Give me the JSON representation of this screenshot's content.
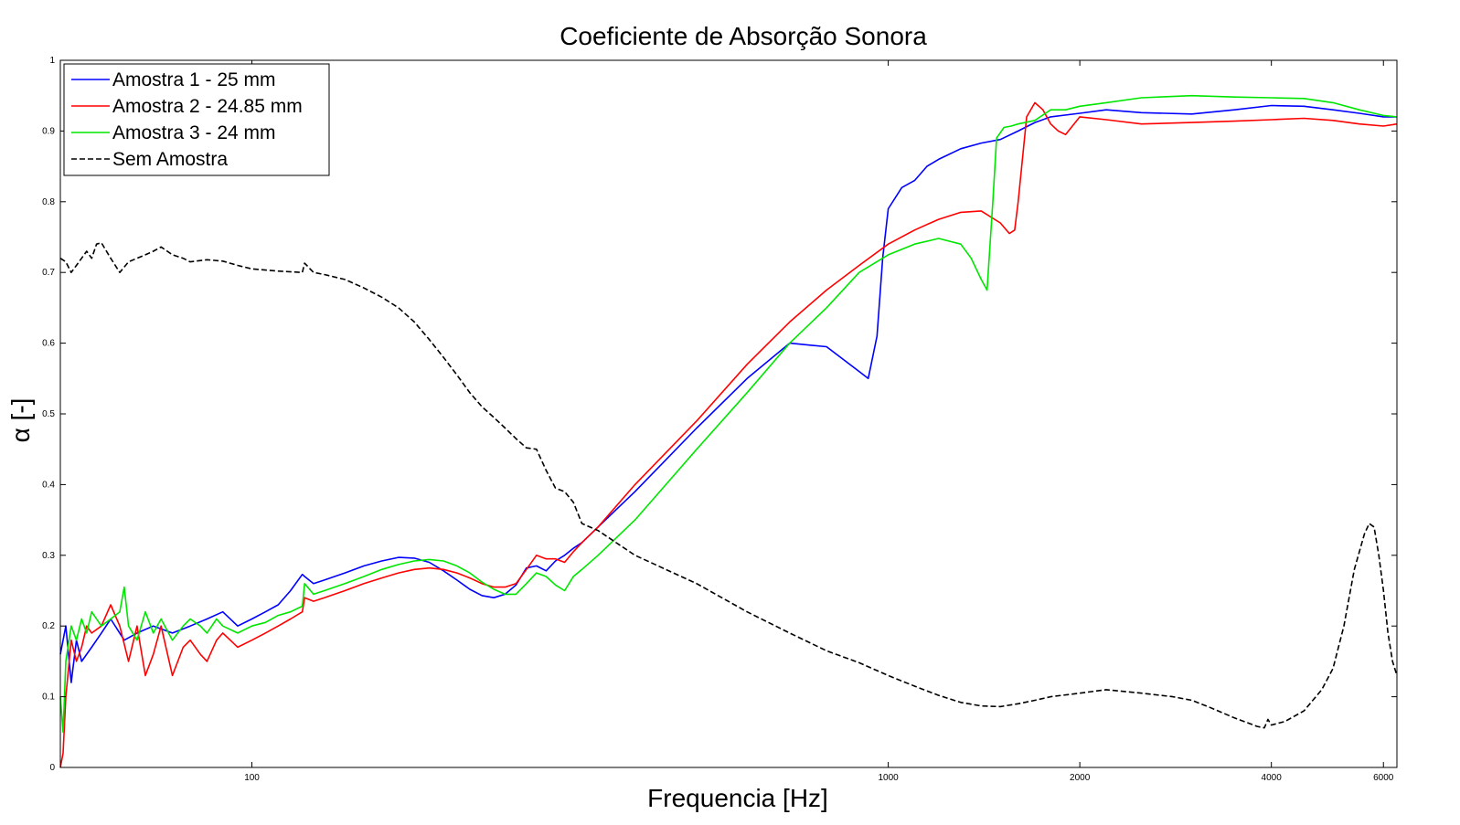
{
  "chart_data": {
    "type": "line",
    "title": "Coeficiente de Absorção Sonora",
    "xlabel": "Frequencia [Hz]",
    "ylabel": "α [-]",
    "xscale": "log",
    "xlim": [
      50,
      6300
    ],
    "ylim": [
      0,
      1
    ],
    "x_ticks": [
      100,
      1000,
      2000,
      4000,
      6000
    ],
    "y_ticks": [
      0,
      0.1,
      0.2,
      0.3,
      0.4,
      0.5,
      0.6,
      0.7,
      0.8,
      0.9,
      1
    ],
    "grid": false,
    "legend": "top-left",
    "series": [
      {
        "name": "Amostra 1 - 25 mm",
        "color": "#0000ff",
        "dash": "solid",
        "x": [
          50,
          51,
          52,
          53,
          54,
          56,
          58,
          60,
          63,
          66,
          70,
          75,
          80,
          85,
          90,
          95,
          100,
          105,
          110,
          115,
          120,
          121,
          125,
          130,
          140,
          150,
          160,
          170,
          180,
          190,
          200,
          210,
          220,
          230,
          240,
          250,
          260,
          270,
          280,
          290,
          300,
          310,
          320,
          330,
          350,
          400,
          500,
          600,
          700,
          800,
          900,
          930,
          960,
          980,
          1000,
          1050,
          1100,
          1150,
          1200,
          1300,
          1400,
          1500,
          1600,
          1700,
          1800,
          2000,
          2200,
          2500,
          3000,
          3500,
          4000,
          4500,
          5000,
          5500,
          6000,
          6300
        ],
        "y": [
          0.16,
          0.2,
          0.12,
          0.18,
          0.15,
          0.17,
          0.19,
          0.21,
          0.18,
          0.19,
          0.2,
          0.19,
          0.2,
          0.21,
          0.22,
          0.2,
          0.21,
          0.22,
          0.23,
          0.25,
          0.273,
          0.27,
          0.26,
          0.265,
          0.275,
          0.285,
          0.292,
          0.297,
          0.296,
          0.29,
          0.278,
          0.265,
          0.252,
          0.243,
          0.24,
          0.245,
          0.258,
          0.282,
          0.285,
          0.278,
          0.292,
          0.3,
          0.31,
          0.318,
          0.34,
          0.39,
          0.48,
          0.55,
          0.6,
          0.595,
          0.56,
          0.55,
          0.61,
          0.72,
          0.79,
          0.82,
          0.83,
          0.85,
          0.86,
          0.875,
          0.883,
          0.888,
          0.9,
          0.912,
          0.92,
          0.925,
          0.93,
          0.926,
          0.924,
          0.93,
          0.936,
          0.935,
          0.93,
          0.925,
          0.92,
          0.92
        ]
      },
      {
        "name": "Amostra 2 - 24.85 mm",
        "color": "#ff0000",
        "dash": "solid",
        "x": [
          50,
          50.5,
          51,
          52,
          53,
          54,
          55,
          56,
          58,
          60,
          62,
          64,
          66,
          68,
          70,
          72,
          75,
          78,
          80,
          83,
          85,
          88,
          90,
          95,
          100,
          105,
          110,
          115,
          120,
          121,
          125,
          130,
          140,
          150,
          160,
          170,
          180,
          190,
          200,
          210,
          220,
          230,
          240,
          250,
          260,
          270,
          280,
          290,
          300,
          310,
          320,
          330,
          350,
          400,
          500,
          600,
          700,
          800,
          900,
          1000,
          1100,
          1200,
          1300,
          1400,
          1500,
          1550,
          1580,
          1600,
          1650,
          1700,
          1750,
          1800,
          1850,
          1900,
          2000,
          2200,
          2500,
          3000,
          3500,
          4000,
          4500,
          5000,
          5500,
          6000,
          6300
        ],
        "y": [
          0.0,
          0.02,
          0.1,
          0.18,
          0.15,
          0.17,
          0.2,
          0.19,
          0.2,
          0.23,
          0.2,
          0.15,
          0.2,
          0.13,
          0.16,
          0.2,
          0.13,
          0.17,
          0.18,
          0.16,
          0.15,
          0.18,
          0.19,
          0.17,
          0.18,
          0.19,
          0.2,
          0.21,
          0.22,
          0.24,
          0.235,
          0.24,
          0.25,
          0.26,
          0.268,
          0.275,
          0.28,
          0.282,
          0.28,
          0.275,
          0.268,
          0.26,
          0.255,
          0.255,
          0.26,
          0.28,
          0.3,
          0.295,
          0.295,
          0.29,
          0.305,
          0.318,
          0.34,
          0.4,
          0.49,
          0.57,
          0.63,
          0.675,
          0.71,
          0.74,
          0.76,
          0.775,
          0.785,
          0.787,
          0.77,
          0.755,
          0.76,
          0.8,
          0.92,
          0.94,
          0.93,
          0.91,
          0.9,
          0.895,
          0.92,
          0.916,
          0.91,
          0.912,
          0.914,
          0.916,
          0.918,
          0.915,
          0.91,
          0.907,
          0.91
        ]
      },
      {
        "name": "Amostra 3 - 24 mm",
        "color": "#00e600",
        "dash": "solid",
        "x": [
          50,
          50.5,
          51,
          52,
          53,
          54,
          55,
          56,
          58,
          60,
          62,
          63,
          64,
          66,
          68,
          70,
          72,
          75,
          78,
          80,
          83,
          85,
          88,
          90,
          95,
          100,
          105,
          110,
          115,
          120,
          121,
          125,
          130,
          140,
          150,
          160,
          170,
          180,
          190,
          200,
          210,
          220,
          230,
          240,
          250,
          260,
          270,
          280,
          290,
          300,
          310,
          320,
          330,
          350,
          400,
          500,
          600,
          700,
          800,
          900,
          1000,
          1100,
          1200,
          1300,
          1350,
          1400,
          1430,
          1460,
          1480,
          1520,
          1560,
          1600,
          1700,
          1800,
          1900,
          2000,
          2200,
          2500,
          3000,
          3500,
          4000,
          4500,
          5000,
          5500,
          6000,
          6300
        ],
        "y": [
          0.1,
          0.05,
          0.15,
          0.2,
          0.18,
          0.21,
          0.19,
          0.22,
          0.2,
          0.21,
          0.22,
          0.255,
          0.2,
          0.18,
          0.22,
          0.19,
          0.21,
          0.18,
          0.2,
          0.21,
          0.2,
          0.19,
          0.21,
          0.2,
          0.19,
          0.2,
          0.205,
          0.215,
          0.22,
          0.228,
          0.26,
          0.245,
          0.25,
          0.26,
          0.27,
          0.28,
          0.287,
          0.292,
          0.294,
          0.292,
          0.285,
          0.275,
          0.262,
          0.252,
          0.245,
          0.245,
          0.26,
          0.275,
          0.27,
          0.258,
          0.25,
          0.27,
          0.28,
          0.3,
          0.35,
          0.45,
          0.53,
          0.6,
          0.65,
          0.7,
          0.725,
          0.74,
          0.748,
          0.74,
          0.72,
          0.69,
          0.675,
          0.8,
          0.89,
          0.905,
          0.907,
          0.91,
          0.915,
          0.93,
          0.93,
          0.935,
          0.94,
          0.947,
          0.95,
          0.948,
          0.947,
          0.946,
          0.94,
          0.93,
          0.922,
          0.92
        ]
      },
      {
        "name": "Sem Amostra",
        "color": "#000000",
        "dash": "dashed",
        "x": [
          50,
          51,
          52,
          53,
          55,
          56,
          57,
          58,
          60,
          62,
          64,
          66,
          68,
          70,
          72,
          75,
          78,
          80,
          85,
          90,
          95,
          100,
          110,
          120,
          121,
          125,
          130,
          140,
          150,
          160,
          170,
          180,
          190,
          200,
          210,
          220,
          230,
          240,
          250,
          260,
          270,
          280,
          290,
          300,
          310,
          320,
          330,
          350,
          400,
          500,
          600,
          700,
          800,
          900,
          1000,
          1100,
          1200,
          1300,
          1400,
          1500,
          1600,
          1700,
          1800,
          2000,
          2200,
          2500,
          2800,
          3000,
          3200,
          3500,
          3800,
          3900,
          3950,
          4000,
          4200,
          4500,
          4800,
          5000,
          5200,
          5400,
          5600,
          5700,
          5800,
          5900,
          6000,
          6100,
          6200,
          6300
        ],
        "y": [
          0.72,
          0.715,
          0.7,
          0.71,
          0.73,
          0.72,
          0.74,
          0.742,
          0.72,
          0.7,
          0.715,
          0.72,
          0.725,
          0.73,
          0.736,
          0.725,
          0.72,
          0.715,
          0.718,
          0.716,
          0.71,
          0.705,
          0.702,
          0.7,
          0.713,
          0.7,
          0.697,
          0.69,
          0.678,
          0.665,
          0.65,
          0.63,
          0.605,
          0.58,
          0.555,
          0.53,
          0.51,
          0.495,
          0.48,
          0.465,
          0.452,
          0.45,
          0.42,
          0.395,
          0.39,
          0.375,
          0.345,
          0.335,
          0.3,
          0.26,
          0.22,
          0.19,
          0.165,
          0.148,
          0.13,
          0.115,
          0.102,
          0.092,
          0.087,
          0.086,
          0.09,
          0.095,
          0.1,
          0.105,
          0.11,
          0.105,
          0.1,
          0.095,
          0.085,
          0.07,
          0.058,
          0.056,
          0.068,
          0.06,
          0.065,
          0.08,
          0.11,
          0.14,
          0.2,
          0.28,
          0.33,
          0.345,
          0.34,
          0.3,
          0.25,
          0.19,
          0.15,
          0.13
        ]
      }
    ]
  }
}
